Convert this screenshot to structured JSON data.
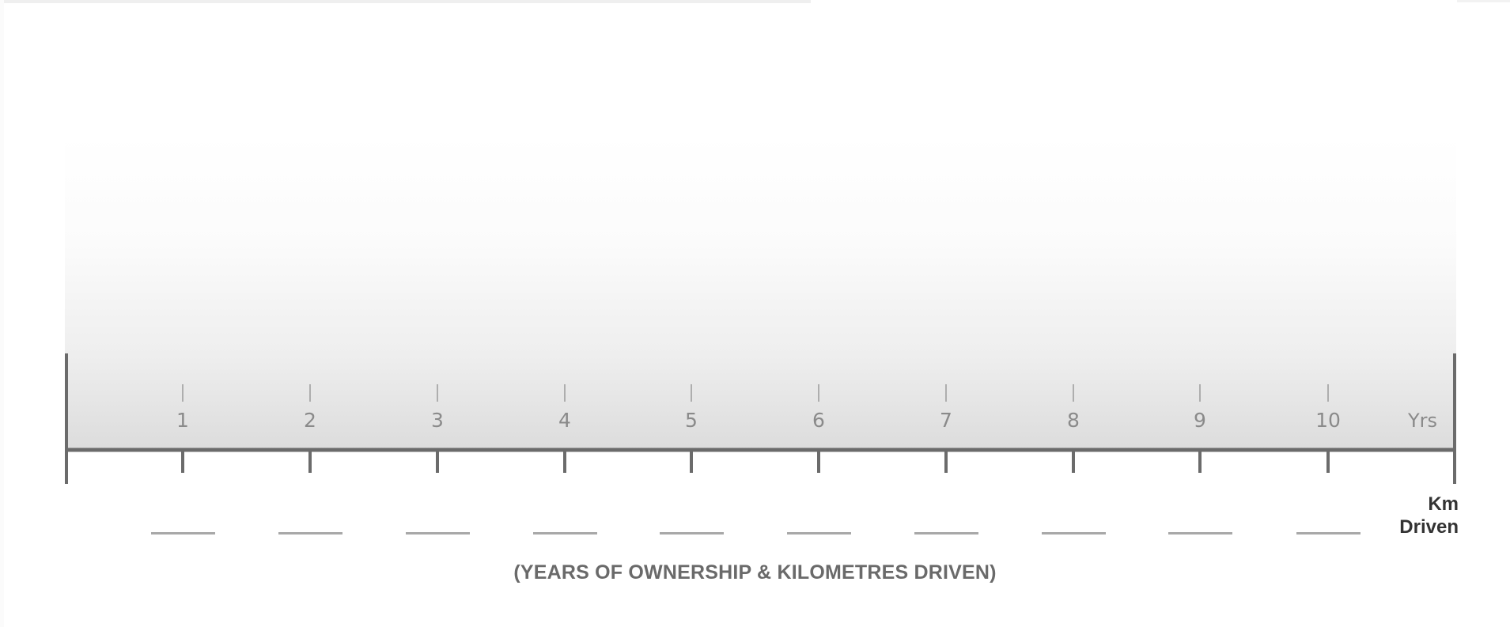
{
  "timeline": {
    "years": [
      "1",
      "2",
      "3",
      "4",
      "5",
      "6",
      "7",
      "8",
      "9",
      "10"
    ],
    "unit_label": "Yrs",
    "km_label_line1": "Km",
    "km_label_line2": "Driven",
    "caption": "(YEARS OF OWNERSHIP & KILOMETRES DRIVEN)"
  },
  "colors": {
    "axis": "#6b6b6b",
    "tick_light": "#9a9a9a",
    "label": "#8a8a8a",
    "blank_line": "#a8a8a8",
    "km_label": "#333333",
    "caption": "#6a6a6a"
  }
}
